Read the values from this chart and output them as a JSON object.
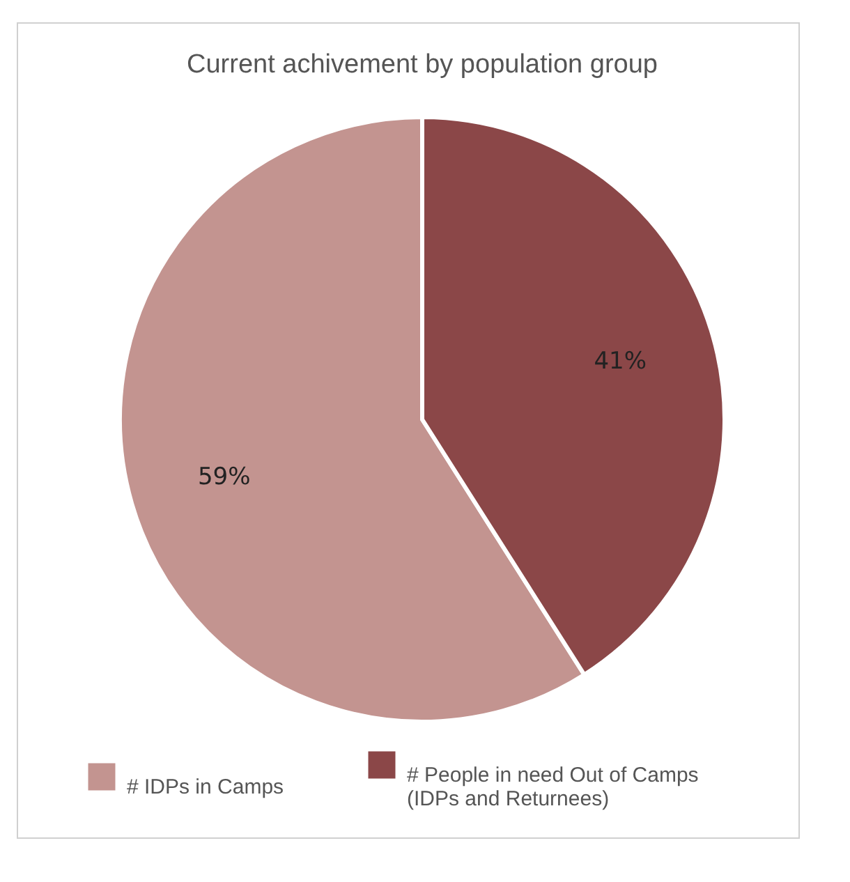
{
  "chart_data": {
    "type": "pie",
    "title": "Current achivement by population group",
    "categories": [
      "# IDPs in Camps",
      "# People in need Out of Camps (IDPs and Returnees)"
    ],
    "values": [
      59,
      41
    ],
    "colors": [
      "#c39490",
      "#8b4748"
    ],
    "value_labels": [
      "59%",
      "41%"
    ],
    "legend": "bottom"
  }
}
